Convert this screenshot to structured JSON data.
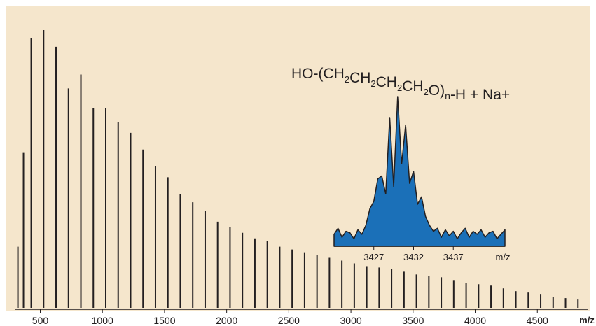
{
  "chart_data": [
    {
      "type": "stick",
      "x_label": "m/z",
      "x": [
        320,
        365,
        427,
        527,
        627,
        727,
        827,
        927,
        1027,
        1127,
        1227,
        1327,
        1427,
        1527,
        1627,
        1727,
        1827,
        1927,
        2027,
        2127,
        2227,
        2327,
        2427,
        2527,
        2627,
        2727,
        2827,
        2927,
        3027,
        3127,
        3227,
        3327,
        3427,
        3527,
        3627,
        3727,
        3827,
        3927,
        4027,
        4127,
        4227,
        4327,
        4427,
        4527,
        4627,
        4727,
        4827
      ],
      "values": [
        22,
        56,
        97,
        100,
        94,
        79,
        84,
        72,
        72,
        67,
        63,
        57,
        51,
        47,
        41,
        38,
        35,
        31,
        29,
        27,
        25,
        24,
        22,
        21,
        20,
        19,
        18,
        17,
        16,
        15,
        14.5,
        14,
        13,
        12,
        11.5,
        11,
        10,
        9,
        8.5,
        8,
        7,
        6,
        5.5,
        5,
        4,
        3.5,
        3
      ],
      "color": "#231f20",
      "background": "#f5e6cc",
      "xlim": [
        300,
        4910
      ],
      "ylim": [
        0,
        100
      ],
      "xticks": [
        500,
        1000,
        1500,
        2000,
        2500,
        3000,
        3500,
        4000,
        4500
      ]
    },
    {
      "type": "area",
      "annotation": "HO-(CH2CH2CH2CH2O)n-H + Na+",
      "x_label": "m/z",
      "x": [
        3422,
        3422.5,
        3423,
        3423.5,
        3424,
        3424.5,
        3425,
        3425.5,
        3426,
        3426.5,
        3427,
        3427.5,
        3428,
        3428.5,
        3429,
        3429.5,
        3430,
        3430.5,
        3431,
        3431.5,
        3432,
        3432.5,
        3433,
        3433.5,
        3434,
        3434.5,
        3435,
        3435.5,
        3436,
        3436.5,
        3437,
        3437.5,
        3438,
        3438.5,
        3439,
        3439.5,
        3440,
        3440.5,
        3441,
        3441.5,
        3442,
        3442.5,
        3443,
        3443.5
      ],
      "values": [
        8,
        12,
        6,
        10,
        9,
        5,
        11,
        8,
        14,
        25,
        30,
        45,
        47,
        35,
        86,
        40,
        100,
        55,
        81,
        42,
        50,
        28,
        33,
        20,
        14,
        10,
        12,
        6,
        11,
        7,
        10,
        5,
        9,
        12,
        6,
        10,
        8,
        11,
        6,
        9,
        10,
        5,
        8,
        11
      ],
      "color": "#1b70b8",
      "xlim": [
        3422,
        3443.5
      ],
      "ylim": [
        0,
        100
      ],
      "xticks": [
        3427,
        3432,
        3437
      ]
    }
  ]
}
